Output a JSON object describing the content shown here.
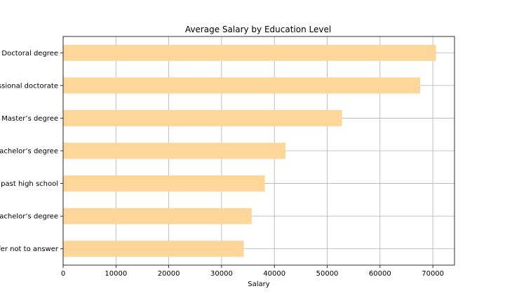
{
  "chart_data": {
    "type": "bar",
    "orientation": "horizontal",
    "title": "Average Salary by Education Level",
    "xlabel": "Salary",
    "ylabel": "",
    "categories": [
      "Doctoral degree",
      "Professional doctorate",
      "Master’s degree",
      "Bachelor’s degree",
      "Some college/university study without earning a bachelor’s degree",
      "No formal education past high school",
      "I prefer not to answer"
    ],
    "category_labels_visible": [
      "Doctoral degree",
      "ssional doctorate",
      "Master’s degree",
      "achelor’s degree",
      "past high school",
      "achelor’s degree",
      "fer not to answer"
    ],
    "values": [
      70600,
      67600,
      52800,
      42100,
      38200,
      35700,
      34200
    ],
    "xlim": [
      0,
      74100
    ],
    "xticks": [
      0,
      10000,
      20000,
      30000,
      40000,
      50000,
      60000,
      70000
    ],
    "grid": true,
    "bar_color": "#ffd699"
  }
}
